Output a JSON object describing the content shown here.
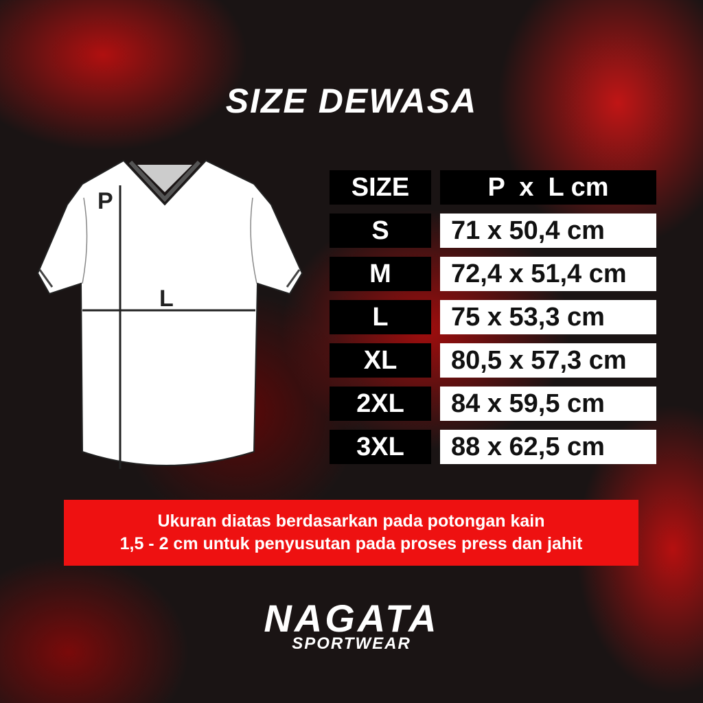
{
  "title": "SIZE DEWASA",
  "diagram": {
    "p_label": "P",
    "l_label": "L"
  },
  "table": {
    "headers": [
      "SIZE",
      "P  x  L cm"
    ],
    "rows": [
      {
        "size": "S",
        "measure": "71 x 50,4 cm"
      },
      {
        "size": "M",
        "measure": "72,4 x 51,4 cm"
      },
      {
        "size": "L",
        "measure": "75 x 53,3 cm"
      },
      {
        "size": "XL",
        "measure": "80,5 x 57,3 cm"
      },
      {
        "size": "2XL",
        "measure": "84 x 59,5 cm"
      },
      {
        "size": "3XL",
        "measure": "88 x 62,5 cm"
      }
    ]
  },
  "note": {
    "line1": "Ukuran diatas berdasarkan pada potongan kain",
    "line2": "1,5 - 2 cm untuk penyusutan pada proses press dan jahit"
  },
  "brand": {
    "name": "NAGATA",
    "tagline": "SPORTWEAR"
  },
  "colors": {
    "accent": "#ee1111"
  }
}
